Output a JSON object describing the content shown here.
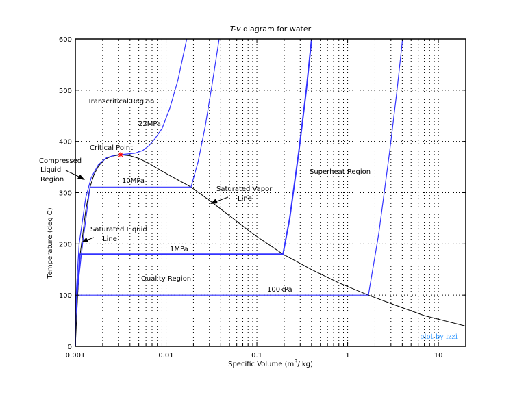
{
  "chart_data": {
    "type": "line",
    "title": "T-v diagram for water",
    "title_italic_part": "T-v",
    "title_rest": " diagram for water",
    "xlabel": "Specific Volume (m3/kg)",
    "xlabel_main": "Specific Volume (m",
    "xlabel_sup": "3",
    "xlabel_end": "/ kg)",
    "ylabel": "Temperature (deg C)",
    "xscale": "log",
    "xlim": [
      0.001,
      20
    ],
    "ylim": [
      0,
      600
    ],
    "grid": true,
    "x_ticks": [
      {
        "value": 0.001,
        "label": "0.001"
      },
      {
        "value": 0.01,
        "label": "0.01"
      },
      {
        "value": 0.1,
        "label": "0.1"
      },
      {
        "value": 1,
        "label": "1"
      },
      {
        "value": 10,
        "label": "10"
      }
    ],
    "y_ticks": [
      {
        "value": 0,
        "label": "0"
      },
      {
        "value": 100,
        "label": "100"
      },
      {
        "value": 200,
        "label": "200"
      },
      {
        "value": 300,
        "label": "300"
      },
      {
        "value": 400,
        "label": "400"
      },
      {
        "value": 500,
        "label": "500"
      },
      {
        "value": 600,
        "label": "600"
      }
    ],
    "colors": {
      "isobar": "#3333ff",
      "saturation": "#000000",
      "critical_point": "#ff0000",
      "watermark": "#3399ff"
    },
    "series": [
      {
        "key": "saturation",
        "x": [
          0.001,
          0.00106,
          0.00113,
          0.0012,
          0.0013,
          0.00145,
          0.0016,
          0.0018,
          0.0021,
          0.0025,
          0.00316,
          0.004,
          0.005,
          0.0065,
          0.009,
          0.0125,
          0.0188,
          0.03,
          0.05,
          0.09,
          0.194,
          0.4,
          0.8,
          1.694,
          3.4,
          7,
          19.5
        ],
        "y": [
          0,
          100,
          180,
          215,
          265,
          311,
          335,
          352,
          365,
          371,
          374,
          372,
          367,
          357,
          342,
          328,
          311,
          285,
          255,
          220,
          180,
          150,
          124,
          100,
          80,
          60,
          40
        ]
      },
      {
        "key": "isobar-22MPa",
        "x": [
          0.001,
          0.00102,
          0.0011,
          0.0013,
          0.0015,
          0.0018,
          0.0022,
          0.0027,
          0.0035,
          0.0045,
          0.0055,
          0.0065,
          0.0075,
          0.009,
          0.011,
          0.0135,
          0.0169
        ],
        "y": [
          0,
          100,
          200,
          290,
          330,
          355,
          368,
          373,
          375,
          377,
          382,
          392,
          405,
          425,
          465,
          520,
          600
        ]
      },
      {
        "key": "isobar-10MPa",
        "x": [
          0.001,
          0.001,
          0.00104,
          0.0012,
          0.00145,
          0.0188,
          0.0225,
          0.027,
          0.032,
          0.0384
        ],
        "y": [
          0,
          50,
          100,
          200,
          311,
          311,
          360,
          430,
          510,
          600
        ]
      },
      {
        "key": "isobar-1MPa",
        "x": [
          0.001,
          0.001,
          0.00104,
          0.001127,
          0.194,
          0.23,
          0.29,
          0.35,
          0.4011
        ],
        "y": [
          0,
          50,
          100,
          180,
          180,
          250,
          380,
          500,
          600
        ]
      },
      {
        "key": "isobar-100kPa",
        "x": [
          0.001,
          0.001,
          0.001043,
          1.694,
          2.2,
          2.9,
          3.5,
          4.028
        ],
        "y": [
          0,
          50,
          100,
          100,
          220,
          380,
          500,
          600
        ]
      }
    ],
    "critical_point": {
      "x": 0.00316,
      "y": 374
    },
    "annotations": {
      "transcritical": "Transcritical Region",
      "p22": "22MPa",
      "critical": "Critical Point",
      "compressed": [
        "Compressed",
        "Liquid",
        "Region"
      ],
      "p10": "10MPa",
      "sat_vapor": [
        "Saturated Vapor",
        "Line"
      ],
      "superheat": "Superheat Region",
      "sat_liquid": [
        "Saturated Liquid",
        "Line"
      ],
      "p1": "1MPa",
      "quality": "Quality Region",
      "p100k": "100kPa"
    },
    "watermark": "plot by izzi"
  }
}
